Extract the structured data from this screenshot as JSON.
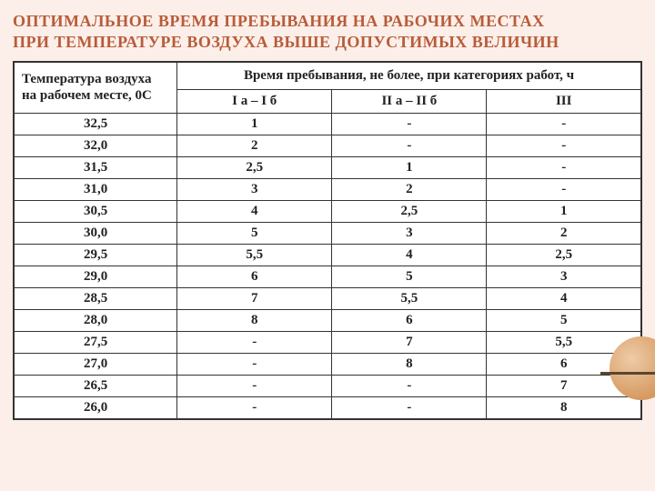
{
  "slide": {
    "title_line1": "ОПТИМАЛЬНОЕ ВРЕМЯ ПРЕБЫВАНИЯ НА РАБОЧИХ МЕСТАХ",
    "title_line2": "ПРИ ТЕМПЕРАТУРЕ ВОЗДУХА ВЫШЕ ДОПУСТИМЫХ ВЕЛИЧИН",
    "title_color": "#b85c3a",
    "title_fontsize": 18,
    "background_color": "#fcefe9"
  },
  "table": {
    "header_left": "Температура воздуха на рабочем месте, 0С",
    "header_top": "Время пребывания, не более, при категориях работ, ч",
    "sub_headers": [
      "I а – I б",
      "II а – II б",
      "III"
    ],
    "columns_width_pct": [
      26,
      24.7,
      24.7,
      24.6
    ],
    "border_color": "#333333",
    "cell_bg": "#ffffff",
    "text_color": "#222222",
    "fontsize": 15,
    "rows": [
      {
        "temp": "32,5",
        "v": [
          "1",
          "-",
          "-"
        ]
      },
      {
        "temp": "32,0",
        "v": [
          "2",
          "-",
          "-"
        ]
      },
      {
        "temp": "31,5",
        "v": [
          "2,5",
          "1",
          "-"
        ]
      },
      {
        "temp": "31,0",
        "v": [
          "3",
          "2",
          "-"
        ]
      },
      {
        "temp": "30,5",
        "v": [
          "4",
          "2,5",
          "1"
        ]
      },
      {
        "temp": "30,0",
        "v": [
          "5",
          "3",
          "2"
        ]
      },
      {
        "temp": "29,5",
        "v": [
          "5,5",
          "4",
          "2,5"
        ]
      },
      {
        "temp": "29,0",
        "v": [
          "6",
          "5",
          "3"
        ]
      },
      {
        "temp": "28,5",
        "v": [
          "7",
          "5,5",
          "4"
        ]
      },
      {
        "temp": "28,0",
        "v": [
          "8",
          "6",
          "5"
        ]
      },
      {
        "temp": "27,5",
        "v": [
          "-",
          "7",
          "5,5"
        ]
      },
      {
        "temp": "27,0",
        "v": [
          "-",
          "8",
          "6"
        ]
      },
      {
        "temp": "26,5",
        "v": [
          "-",
          "-",
          "7"
        ]
      },
      {
        "temp": "26,0",
        "v": [
          "-",
          "-",
          "8"
        ]
      }
    ]
  },
  "decor": {
    "circle_gradient_inner": "#eecba8",
    "circle_gradient_outer": "#d69a60",
    "line_color": "#5a4631"
  }
}
